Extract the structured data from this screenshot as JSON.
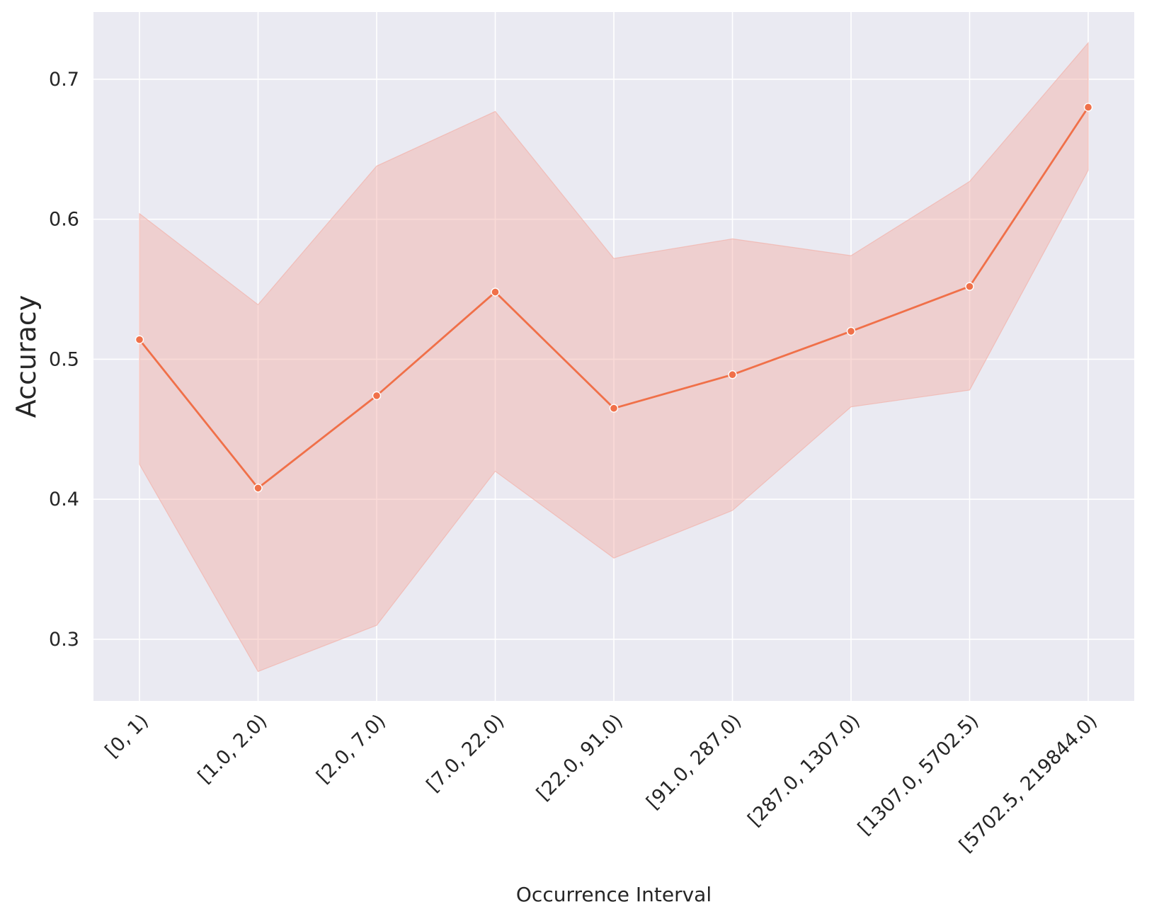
{
  "chart_data": {
    "type": "line",
    "title": "",
    "xlabel": "Occurrence Interval",
    "ylabel": "Accuracy",
    "categories": [
      "[0, 1)",
      "[1.0, 2.0)",
      "[2.0, 7.0)",
      "[7.0, 22.0)",
      "[22.0, 91.0)",
      "[91.0, 287.0)",
      "[287.0, 1307.0)",
      "[1307.0, 5702.5)",
      "[5702.5, 219844.0)"
    ],
    "series": [
      {
        "values": [
          0.514,
          0.408,
          0.474,
          0.548,
          0.465,
          0.489,
          0.52,
          0.552,
          0.68
        ],
        "ci_lower": [
          0.425,
          0.277,
          0.31,
          0.42,
          0.358,
          0.392,
          0.466,
          0.478,
          0.635
        ],
        "ci_upper": [
          0.604,
          0.539,
          0.638,
          0.677,
          0.572,
          0.586,
          0.574,
          0.627,
          0.726
        ],
        "color": "#f07049",
        "band_color": "#f4aaa0"
      }
    ],
    "ylim": [
      0.256,
      0.748
    ],
    "yticks": [
      0.3,
      0.4,
      0.5,
      0.6,
      0.7
    ],
    "ytick_labels": [
      "0.3",
      "0.4",
      "0.5",
      "0.6",
      "0.7"
    ],
    "grid": true,
    "legend": "none",
    "background_color": "#eaeaf2",
    "grid_color": "#ffffff"
  }
}
